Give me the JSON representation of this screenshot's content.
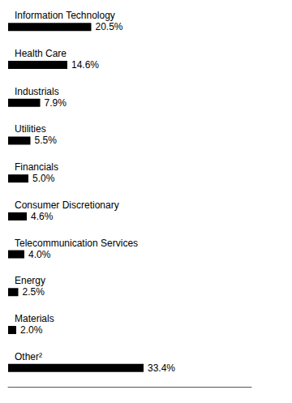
{
  "chart_data": {
    "type": "bar",
    "orientation": "horizontal",
    "categories": [
      "Information Technology",
      "Health Care",
      "Industrials",
      "Utilities",
      "Financials",
      "Consumer Discretionary",
      "Telecommunication Services",
      "Energy",
      "Materials",
      "Other²"
    ],
    "values": [
      20.5,
      14.6,
      7.9,
      5.5,
      5.0,
      4.6,
      4.0,
      2.5,
      2.0,
      33.4
    ],
    "value_labels": [
      "20.5%",
      "14.6%",
      "7.9%",
      "5.5%",
      "5.0%",
      "4.6%",
      "4.0%",
      "2.5%",
      "2.0%",
      "33.4%"
    ],
    "data_labels": true,
    "color": "#000000",
    "xlim": [
      0,
      60
    ],
    "tick_labels": false,
    "grid": false
  }
}
